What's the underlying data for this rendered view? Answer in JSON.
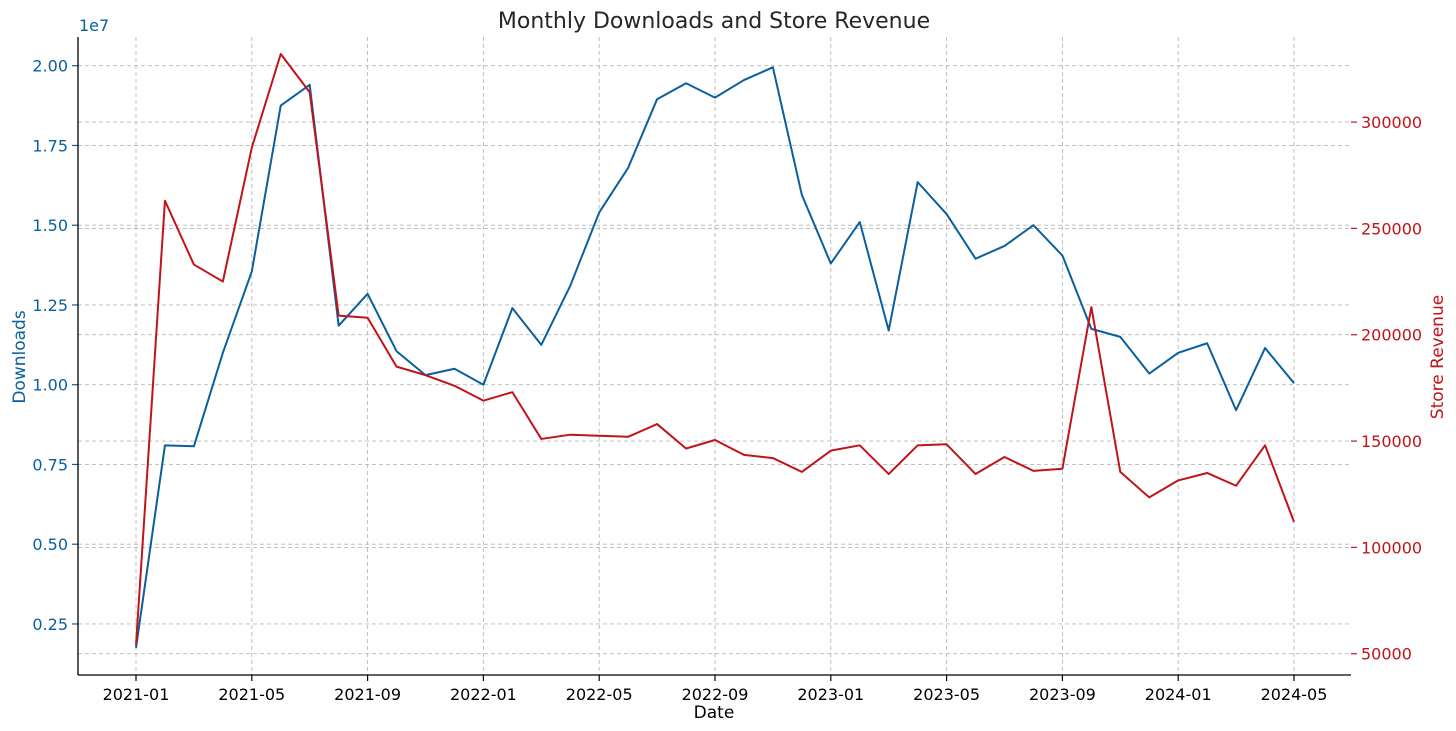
{
  "chart_data": {
    "type": "line",
    "title": "Monthly Downloads and Store Revenue",
    "xlabel": "Date",
    "x": [
      "2021-01",
      "2021-02",
      "2021-03",
      "2021-04",
      "2021-05",
      "2021-06",
      "2021-07",
      "2021-08",
      "2021-09",
      "2021-10",
      "2021-11",
      "2021-12",
      "2022-01",
      "2022-02",
      "2022-03",
      "2022-04",
      "2022-05",
      "2022-06",
      "2022-07",
      "2022-08",
      "2022-09",
      "2022-10",
      "2022-11",
      "2022-12",
      "2023-01",
      "2023-02",
      "2023-03",
      "2023-04",
      "2023-05",
      "2023-06",
      "2023-07",
      "2023-08",
      "2023-09",
      "2023-10",
      "2023-11",
      "2023-12",
      "2024-01",
      "2024-02",
      "2024-03",
      "2024-04",
      "2024-05"
    ],
    "x_ticks": [
      "2021-01",
      "2021-05",
      "2021-09",
      "2022-01",
      "2022-05",
      "2022-09",
      "2023-01",
      "2023-05",
      "2023-09",
      "2024-01",
      "2024-05"
    ],
    "grid": true,
    "left_axis": {
      "label": "Downloads",
      "offset_text": "1e7",
      "ylim": [
        0.9,
        20.9
      ],
      "ticks": [
        2.5,
        5.0,
        7.5,
        10.0,
        12.5,
        15.0,
        17.5,
        20.0
      ],
      "tick_labels": [
        "0.25",
        "0.50",
        "0.75",
        "1.00",
        "1.25",
        "1.50",
        "1.75",
        "2.00"
      ],
      "color": "#0a5f9e"
    },
    "right_axis": {
      "label": "Store Revenue",
      "ylim": [
        40000,
        340000
      ],
      "ticks": [
        50000,
        100000,
        150000,
        200000,
        250000,
        300000
      ],
      "tick_labels": [
        "50000",
        "100000",
        "150000",
        "200000",
        "250000",
        "300000"
      ],
      "color": "#c0141a"
    },
    "series": [
      {
        "axis": "left",
        "color": "#0a5f9e",
        "unit_scale": 1000000,
        "values": [
          1.75,
          8.1,
          8.07,
          11.0,
          13.55,
          18.75,
          19.4,
          11.85,
          12.85,
          11.05,
          10.3,
          10.5,
          10.0,
          12.4,
          11.25,
          13.1,
          15.4,
          16.8,
          18.95,
          19.45,
          19.0,
          19.55,
          19.95,
          15.95,
          13.8,
          15.1,
          11.7,
          16.35,
          15.35,
          13.95,
          14.35,
          15.0,
          14.05,
          11.75,
          11.5,
          10.35,
          11.0,
          11.3,
          9.2,
          11.15,
          10.05
        ]
      },
      {
        "axis": "right",
        "color": "#c0141a",
        "values": [
          54000,
          263000,
          233000,
          225000,
          288000,
          332000,
          314000,
          209000,
          208000,
          185000,
          181000,
          176000,
          169000,
          173000,
          151000,
          153000,
          152500,
          152000,
          158000,
          146500,
          150500,
          143500,
          142000,
          135500,
          145500,
          148000,
          134500,
          148000,
          148500,
          134500,
          142500,
          136000,
          137000,
          213000,
          135500,
          123500,
          131500,
          135000,
          129000,
          148000,
          112000
        ]
      }
    ]
  }
}
